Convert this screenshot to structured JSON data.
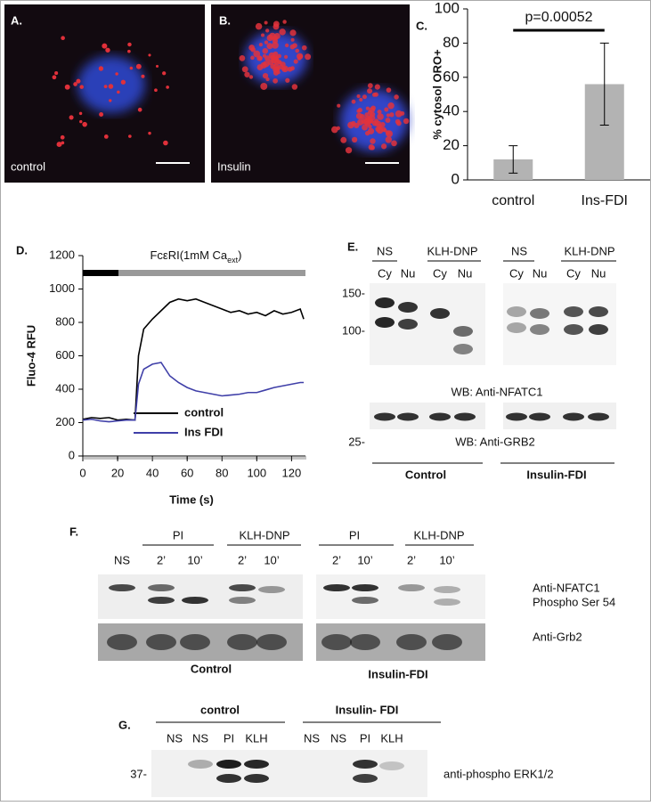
{
  "panels": {
    "a": {
      "label": "A.",
      "caption": "control"
    },
    "b": {
      "label": "B.",
      "caption": "Insulin"
    },
    "e": {
      "label": "E.",
      "groups": [
        "NS",
        "KLH-DNP",
        "NS",
        "KLH-DNP"
      ],
      "lanes": [
        "Cy",
        "Nu",
        "Cy",
        "Nu",
        "Cy",
        "Nu",
        "Cy",
        "Nu"
      ],
      "markers": [
        "150-",
        "100-",
        "25-"
      ],
      "blots": [
        "WB: Anti-NFATC1",
        "WB: Anti-GRB2"
      ],
      "conditions": [
        "Control",
        "Insulin-FDI"
      ]
    },
    "f": {
      "label": "F.",
      "first_lane": "NS",
      "groups": [
        "PI",
        "KLH-DNP",
        "PI",
        "KLH-DNP"
      ],
      "lanes": [
        "2’",
        "10’",
        "2’",
        "10’",
        "2’",
        "10’",
        "2’",
        "10’"
      ],
      "antibodies": [
        "Anti-NFATC1",
        "Phospho Ser 54",
        "Anti-Grb2"
      ],
      "conditions": [
        "Control",
        "Insulin-FDI"
      ]
    },
    "g": {
      "label": "G.",
      "conditions": [
        "control",
        "Insulin- FDI"
      ],
      "lanes": [
        "NS",
        "NS",
        "PI",
        "KLH",
        "NS",
        "NS",
        "PI",
        "KLH"
      ],
      "marker": "37-",
      "antibody": "anti-phospho ERK1/2"
    }
  },
  "chart_data": [
    {
      "type": "bar",
      "label": "C.",
      "categories": [
        "control",
        "Ins-FDI"
      ],
      "values": [
        12,
        56
      ],
      "errors": [
        8,
        24
      ],
      "color": "#b3b3b3",
      "ylim": [
        0,
        100
      ],
      "yticks": [
        0,
        20,
        40,
        60,
        80,
        100
      ],
      "y_label": "% cytosol ORO+",
      "annotation": "p=0.00052"
    },
    {
      "type": "line",
      "label": "D.",
      "title": [
        "FcεRI(1mM Ca",
        "ext",
        ")"
      ],
      "x": [
        0,
        5,
        10,
        15,
        20,
        25,
        30,
        32,
        35,
        40,
        45,
        50,
        55,
        60,
        65,
        70,
        75,
        80,
        85,
        90,
        95,
        100,
        105,
        110,
        115,
        120,
        125,
        127
      ],
      "series": [
        {
          "name": "control",
          "color": "#000000",
          "values": [
            220,
            230,
            225,
            230,
            215,
            220,
            215,
            600,
            760,
            820,
            870,
            920,
            940,
            930,
            940,
            920,
            900,
            880,
            860,
            870,
            850,
            860,
            840,
            870,
            850,
            860,
            880,
            820
          ]
        },
        {
          "name": "Ins FDI",
          "color": "#3f3fa8",
          "values": [
            215,
            220,
            210,
            205,
            210,
            215,
            215,
            430,
            520,
            550,
            560,
            480,
            440,
            410,
            390,
            380,
            370,
            360,
            365,
            370,
            380,
            380,
            395,
            410,
            420,
            430,
            440,
            440
          ]
        }
      ],
      "xlim": [
        0,
        128
      ],
      "xticks": [
        0,
        20,
        40,
        60,
        80,
        100,
        120
      ],
      "ylim": [
        0,
        1200
      ],
      "yticks": [
        0,
        200,
        400,
        600,
        800,
        1000,
        1200
      ],
      "x_label": "Time (s)",
      "y_label": "Fluo-4 RFU"
    }
  ]
}
